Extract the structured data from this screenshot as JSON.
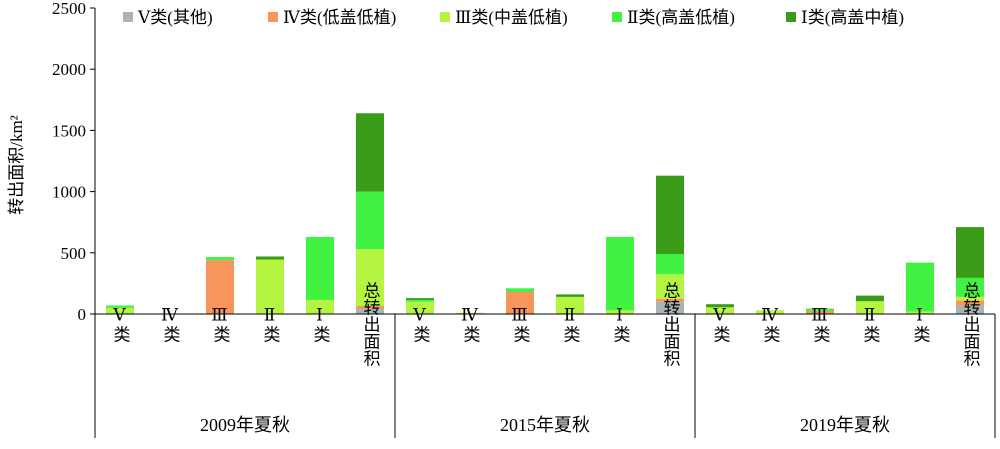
{
  "chart_data": {
    "type": "bar",
    "stacked": true,
    "ylabel": "转出面积/km²",
    "ylim": [
      0,
      2500
    ],
    "yticks": [
      0,
      500,
      1000,
      1500,
      2000,
      2500
    ],
    "legend_position": "top",
    "groups": [
      {
        "label": "2009年夏秋",
        "categories": [
          "Ⅴ类",
          "Ⅳ类",
          "Ⅲ类",
          "Ⅱ类",
          "Ⅰ类",
          "总转出面积"
        ],
        "series": [
          {
            "name": "Ⅴ类(其他)",
            "color": "#aab4b7",
            "values": [
              0,
              0,
              0,
              5,
              5,
              45
            ]
          },
          {
            "name": "Ⅳ类(低盖低植)",
            "color": "#f7955a",
            "values": [
              0,
              0,
              440,
              0,
              0,
              20
            ]
          },
          {
            "name": "Ⅲ类(中盖低植)",
            "color": "#b5f542",
            "values": [
              50,
              0,
              0,
              440,
              110,
              465
            ]
          },
          {
            "name": "Ⅱ类(高盖低植)",
            "color": "#41f242",
            "values": [
              20,
              0,
              25,
              0,
              515,
              470
            ]
          },
          {
            "name": "Ⅰ类(高盖中植)",
            "color": "#3a9b18",
            "values": [
              0,
              0,
              0,
              25,
              0,
              640
            ]
          }
        ]
      },
      {
        "label": "2015年夏秋",
        "categories": [
          "Ⅴ类",
          "Ⅳ类",
          "Ⅲ类",
          "Ⅱ类",
          "Ⅰ类",
          "总转出面积"
        ],
        "series": [
          {
            "name": "Ⅴ类(其他)",
            "color": "#aab4b7",
            "values": [
              0,
              0,
              0,
              0,
              0,
              100
            ]
          },
          {
            "name": "Ⅳ类(低盖低植)",
            "color": "#f7955a",
            "values": [
              0,
              0,
              180,
              0,
              0,
              25
            ]
          },
          {
            "name": "Ⅲ类(中盖低植)",
            "color": "#b5f542",
            "values": [
              100,
              10,
              0,
              140,
              30,
              200
            ]
          },
          {
            "name": "Ⅱ类(高盖低植)",
            "color": "#41f242",
            "values": [
              15,
              0,
              30,
              0,
              600,
              165
            ]
          },
          {
            "name": "Ⅰ类(高盖中植)",
            "color": "#3a9b18",
            "values": [
              15,
              0,
              0,
              20,
              0,
              640
            ]
          }
        ]
      },
      {
        "label": "2019年夏秋",
        "categories": [
          "Ⅴ类",
          "Ⅳ类",
          "Ⅲ类",
          "Ⅱ类",
          "Ⅰ类",
          "总转出面积"
        ],
        "series": [
          {
            "name": "Ⅴ类(其他)",
            "color": "#aab4b7",
            "values": [
              0,
              0,
              0,
              0,
              0,
              70
            ]
          },
          {
            "name": "Ⅳ类(低盖低植)",
            "color": "#f7955a",
            "values": [
              0,
              0,
              25,
              0,
              0,
              40
            ]
          },
          {
            "name": "Ⅲ类(中盖低植)",
            "color": "#b5f542",
            "values": [
              55,
              30,
              0,
              105,
              20,
              30
            ]
          },
          {
            "name": "Ⅱ类(高盖低植)",
            "color": "#41f242",
            "values": [
              0,
              0,
              20,
              0,
              400,
              155
            ]
          },
          {
            "name": "Ⅰ类(高盖中植)",
            "color": "#3a9b18",
            "values": [
              25,
              0,
              0,
              45,
              0,
              415
            ]
          }
        ]
      }
    ]
  }
}
